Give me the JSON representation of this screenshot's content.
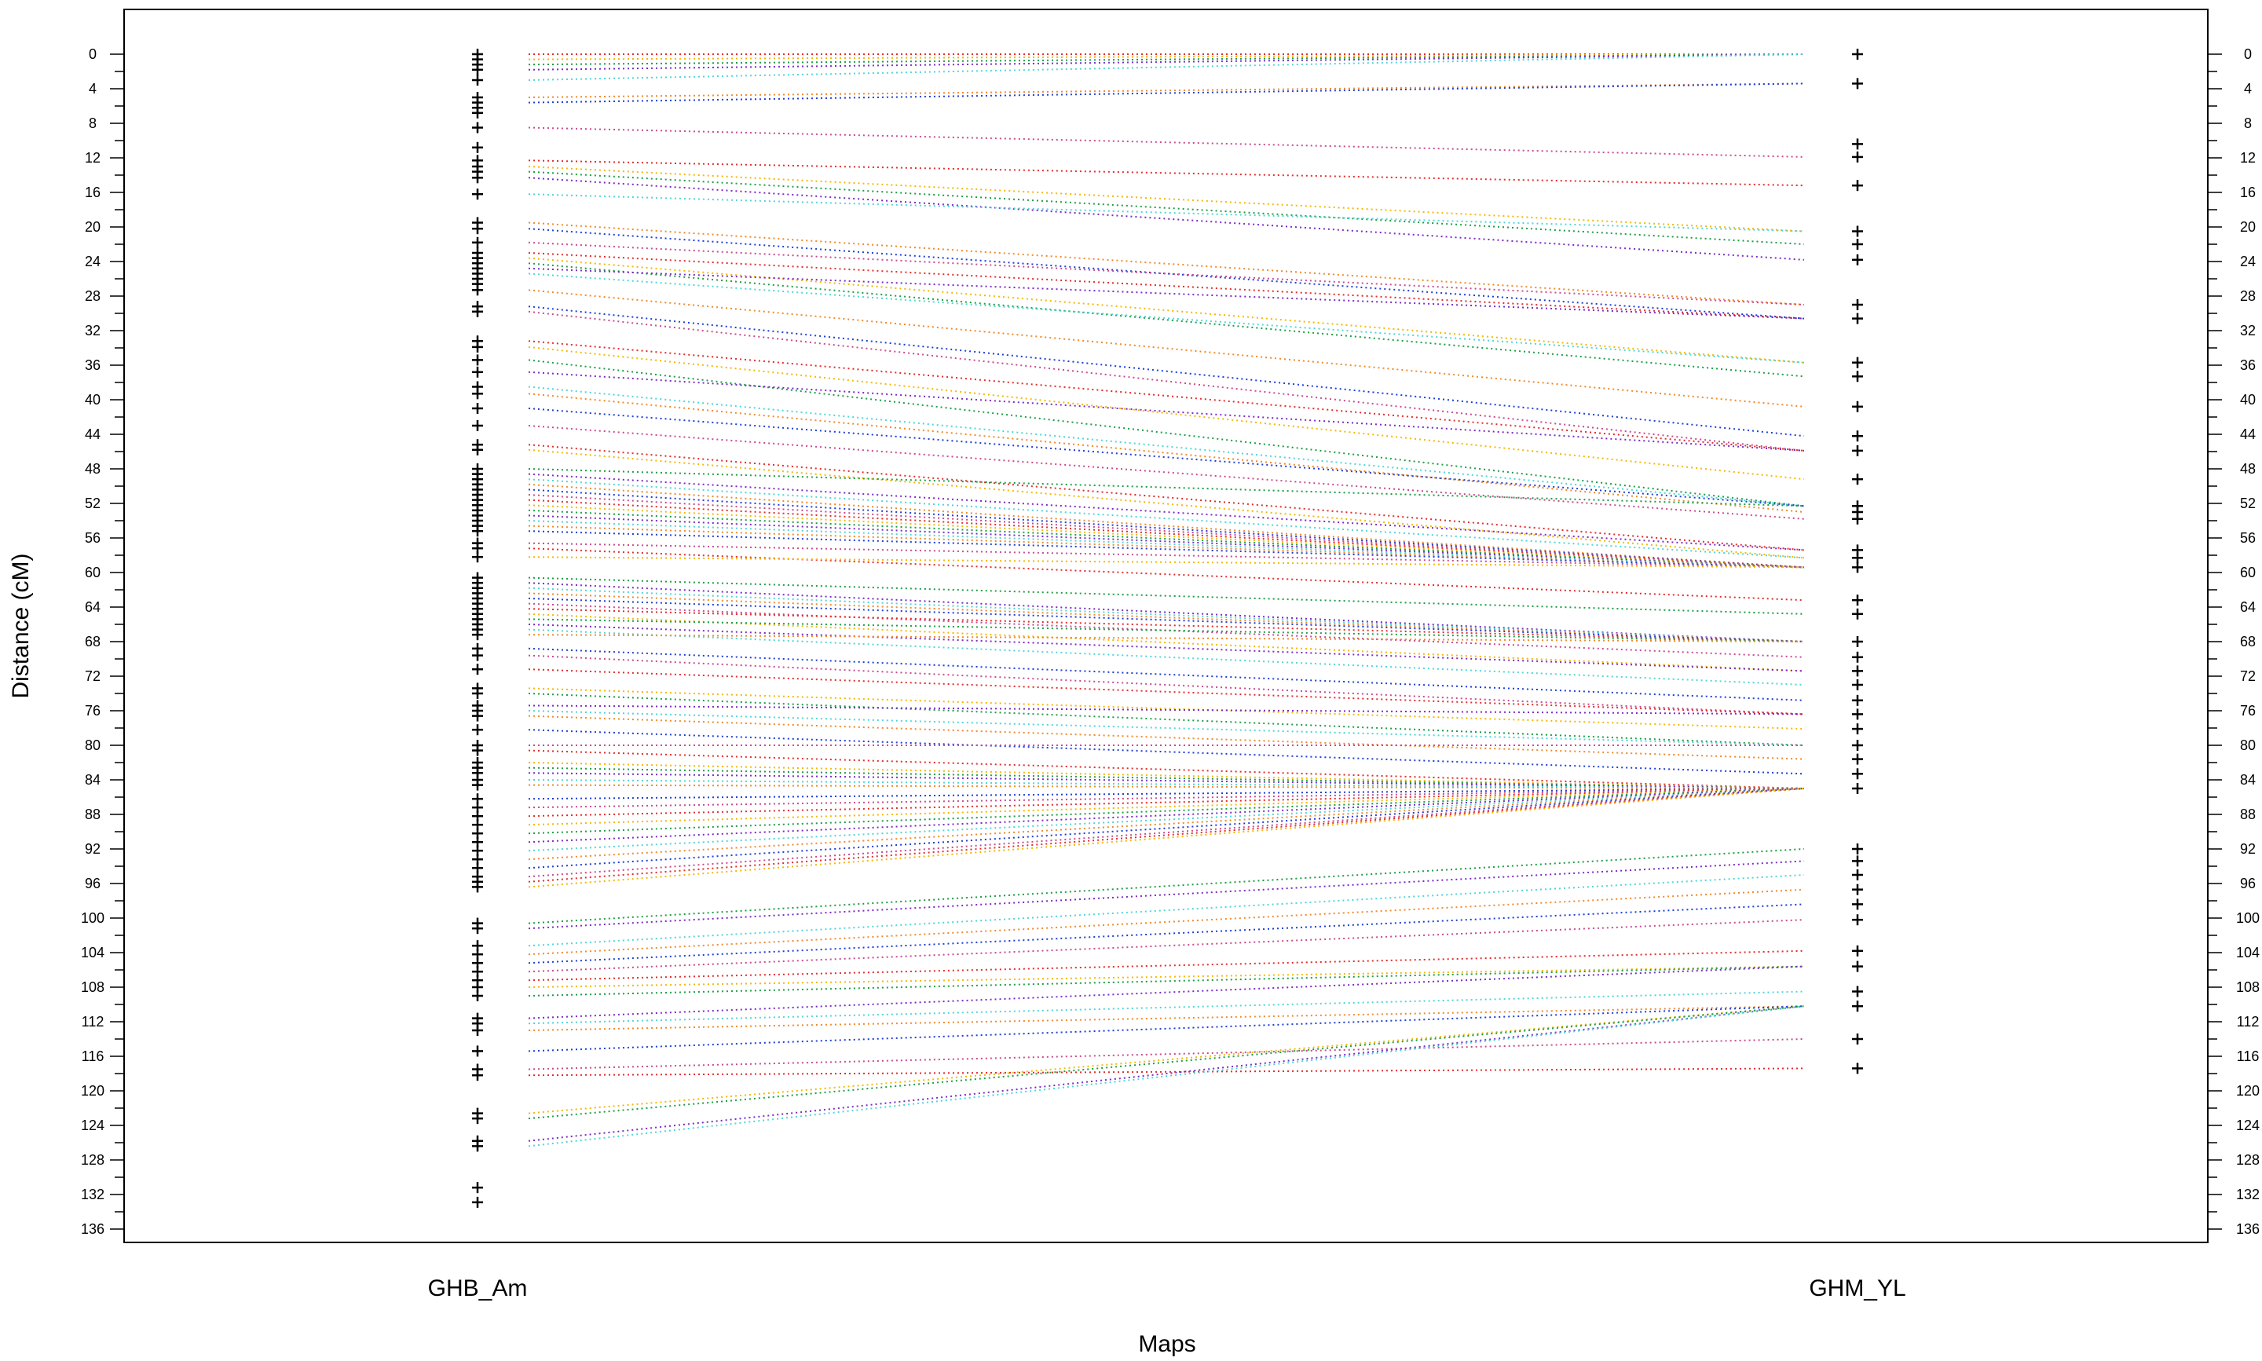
{
  "chart_data": {
    "type": "scatter",
    "title": "",
    "xlabel": "Maps",
    "ylabel": "Distance (cM)",
    "ylim": [
      -5,
      138
    ],
    "y_reversed": true,
    "yticks": [
      0,
      4,
      8,
      12,
      16,
      20,
      24,
      28,
      32,
      36,
      40,
      44,
      48,
      52,
      56,
      60,
      64,
      68,
      72,
      76,
      80,
      84,
      88,
      92,
      96,
      100,
      104,
      108,
      112,
      116,
      120,
      124,
      128,
      132,
      136
    ],
    "grid": false,
    "legend": "none",
    "maps": [
      {
        "name": "GHB_Am",
        "markers": [
          0,
          0.6,
          1.2,
          1.8,
          3,
          5,
          5.6,
          6.2,
          6.8,
          8.5,
          10.8,
          12.3,
          13,
          13.6,
          14.3,
          16.2,
          19.5,
          20.2,
          21.8,
          23,
          23.6,
          24.2,
          24.8,
          25.4,
          26,
          26.6,
          27.3,
          29.2,
          29.8,
          33.2,
          33.9,
          35.4,
          36.8,
          38.5,
          39.3,
          41,
          43,
          45.2,
          45.8,
          48,
          48.6,
          49.2,
          49.8,
          50.4,
          51,
          51.6,
          52.2,
          52.8,
          53.4,
          54,
          54.6,
          55.2,
          56.6,
          57.2,
          58.2,
          60.6,
          61.2,
          61.8,
          62.4,
          63,
          63.6,
          64.2,
          64.8,
          65.4,
          66,
          66.6,
          67.2,
          68.8,
          69.6,
          71.2,
          73.4,
          74,
          75.4,
          76,
          76.6,
          78.2,
          80,
          80.6,
          82,
          82.6,
          83.2,
          84,
          84.6,
          86.2,
          87.2,
          88.2,
          89.2,
          90.2,
          91.2,
          92.2,
          93.2,
          94.2,
          95.2,
          95.8,
          96.4,
          100.6,
          101.2,
          103.2,
          104.2,
          105.2,
          106.2,
          107.2,
          108,
          109,
          111.6,
          112.2,
          113,
          115.4,
          117.5,
          118.2,
          122.6,
          123.2,
          125.8,
          126.4,
          131.2,
          132.9
        ]
      },
      {
        "name": "GHM_YL",
        "markers": [
          0,
          3.4,
          10.4,
          11.9,
          15.2,
          20.5,
          22,
          23.8,
          29,
          30.6,
          35.7,
          37.3,
          40.8,
          44.2,
          45.9,
          49.2,
          52.3,
          53,
          53.8,
          57.4,
          58.3,
          59.4,
          63.2,
          64.8,
          68,
          69.8,
          71.4,
          73,
          74.8,
          76.4,
          78.1,
          80,
          81.6,
          83.3,
          85,
          92,
          93.4,
          95,
          96.7,
          98.4,
          100.2,
          103.8,
          105.6,
          108.5,
          110.2,
          114,
          117.4
        ]
      }
    ],
    "links": {
      "style": "dotted",
      "palette": [
        "#e32c2c",
        "#f5b800",
        "#1b9e45",
        "#7a2cc7",
        "#4fd6d6",
        "#f08a2a",
        "#1e3fd8",
        "#c84b8f"
      ],
      "pairs": [
        [
          0,
          0
        ],
        [
          0.6,
          0
        ],
        [
          1.2,
          0
        ],
        [
          1.8,
          0
        ],
        [
          3,
          0
        ],
        [
          5,
          3.4
        ],
        [
          5.6,
          3.4
        ],
        [
          8.5,
          11.9
        ],
        [
          12.3,
          15.2
        ],
        [
          13,
          20.5
        ],
        [
          13.6,
          22
        ],
        [
          14.3,
          23.8
        ],
        [
          16.2,
          20.5
        ],
        [
          19.5,
          29
        ],
        [
          20.2,
          30.6
        ],
        [
          21.8,
          29
        ],
        [
          23,
          30.6
        ],
        [
          23.6,
          35.7
        ],
        [
          24.2,
          37.3
        ],
        [
          24.8,
          30.6
        ],
        [
          25.4,
          35.7
        ],
        [
          27.3,
          40.8
        ],
        [
          29.2,
          44.2
        ],
        [
          29.8,
          45.9
        ],
        [
          33.2,
          45.9
        ],
        [
          33.9,
          49.2
        ],
        [
          35.4,
          52.3
        ],
        [
          36.8,
          45.9
        ],
        [
          38.5,
          52.3
        ],
        [
          39.3,
          53
        ],
        [
          41,
          52.3
        ],
        [
          43,
          53.8
        ],
        [
          45.2,
          57.4
        ],
        [
          45.8,
          58.3
        ],
        [
          48,
          52.3
        ],
        [
          48.6,
          57.4
        ],
        [
          49.2,
          58.3
        ],
        [
          49.8,
          59.4
        ],
        [
          50.4,
          59.4
        ],
        [
          51,
          59.4
        ],
        [
          51.6,
          59.4
        ],
        [
          52.2,
          59.4
        ],
        [
          52.8,
          59.4
        ],
        [
          53.4,
          59.4
        ],
        [
          54,
          59.4
        ],
        [
          54.6,
          59.4
        ],
        [
          55.2,
          59.4
        ],
        [
          56.6,
          59.4
        ],
        [
          57.2,
          63.2
        ],
        [
          58.2,
          59.4
        ],
        [
          60.6,
          64.8
        ],
        [
          61.2,
          68
        ],
        [
          61.8,
          68
        ],
        [
          62.4,
          68
        ],
        [
          63,
          68
        ],
        [
          63.6,
          69.8
        ],
        [
          64.2,
          68
        ],
        [
          64.8,
          71.4
        ],
        [
          65.4,
          68
        ],
        [
          66,
          71.4
        ],
        [
          66.6,
          73
        ],
        [
          67.2,
          68
        ],
        [
          68.8,
          74.8
        ],
        [
          69.6,
          76.4
        ],
        [
          71.2,
          76.4
        ],
        [
          73.4,
          78.1
        ],
        [
          74,
          80
        ],
        [
          75.4,
          76.4
        ],
        [
          76,
          80
        ],
        [
          76.6,
          81.6
        ],
        [
          78.2,
          83.3
        ],
        [
          80,
          80
        ],
        [
          80.6,
          85
        ],
        [
          82,
          85
        ],
        [
          82.6,
          85
        ],
        [
          83.2,
          85
        ],
        [
          84,
          85
        ],
        [
          84.6,
          85
        ],
        [
          86.2,
          85
        ],
        [
          87.2,
          85
        ],
        [
          88.2,
          85
        ],
        [
          89.2,
          85
        ],
        [
          90.2,
          85
        ],
        [
          91.2,
          85
        ],
        [
          92.2,
          85
        ],
        [
          93.2,
          85
        ],
        [
          94.2,
          85
        ],
        [
          95.2,
          85
        ],
        [
          95.8,
          85
        ],
        [
          96.4,
          85
        ],
        [
          100.6,
          92
        ],
        [
          101.2,
          93.4
        ],
        [
          103.2,
          95
        ],
        [
          104.2,
          96.7
        ],
        [
          105.2,
          98.4
        ],
        [
          106.2,
          100.2
        ],
        [
          107.2,
          103.8
        ],
        [
          108,
          105.6
        ],
        [
          109,
          105.6
        ],
        [
          111.6,
          105.6
        ],
        [
          112.2,
          108.5
        ],
        [
          113,
          110.2
        ],
        [
          115.4,
          110.2
        ],
        [
          117.5,
          114
        ],
        [
          118.2,
          117.4
        ],
        [
          122.6,
          110.2
        ],
        [
          123.2,
          110.2
        ],
        [
          125.8,
          110.2
        ],
        [
          126.4,
          110.2
        ]
      ]
    }
  }
}
